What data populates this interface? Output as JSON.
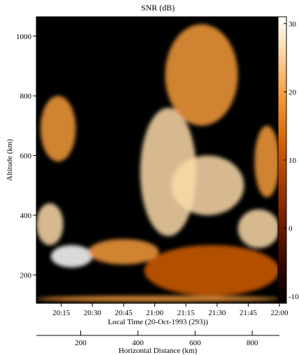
{
  "chart_data": {
    "type": "heatmap",
    "title": "SNR (dB)",
    "xlabel": "Local Time (20-Oct-1993 (293))",
    "ylabel": "Altitude (km)",
    "x2label": "Horizontal Distance (km)",
    "x_ticks": [
      "20:15",
      "20:30",
      "20:45",
      "21:00",
      "21:15",
      "21:30",
      "21:45",
      "22:00"
    ],
    "x_tick_minutes": [
      1215,
      1230,
      1245,
      1260,
      1275,
      1290,
      1305,
      1320
    ],
    "xlim_minutes": [
      1203,
      1320
    ],
    "y_ticks": [
      200,
      400,
      600,
      800,
      1000
    ],
    "ylim": [
      105,
      1065
    ],
    "x2_ticks": [
      200,
      400,
      600,
      800
    ],
    "x2lim": [
      45,
      895
    ],
    "colorbar": {
      "range": [
        -11,
        31
      ],
      "ticks": [
        -10,
        0,
        10,
        20,
        30
      ],
      "colors": [
        "#000000",
        "#3a0800",
        "#8c2a00",
        "#d25d00",
        "#f59a3a",
        "#fcd9a8",
        "#ffffff"
      ]
    },
    "grid": false,
    "background_value": -10,
    "echo_regions": [
      {
        "time": [
          1203,
          1216
        ],
        "alt": [
          300,
          440
        ],
        "snr": 22
      },
      {
        "time": [
          1210,
          1230
        ],
        "alt": [
          225,
          300
        ],
        "snr": 24
      },
      {
        "time": [
          1205,
          1222
        ],
        "alt": [
          580,
          800
        ],
        "snr": 12
      },
      {
        "time": [
          1228,
          1262
        ],
        "alt": [
          235,
          320
        ],
        "snr": 14
      },
      {
        "time": [
          1253,
          1280
        ],
        "alt": [
          330,
          760
        ],
        "snr": 20
      },
      {
        "time": [
          1265,
          1300
        ],
        "alt": [
          700,
          1040
        ],
        "snr": 16
      },
      {
        "time": [
          1268,
          1303
        ],
        "alt": [
          400,
          600
        ],
        "snr": 18
      },
      {
        "time": [
          1300,
          1320
        ],
        "alt": [
          290,
          420
        ],
        "snr": 22
      },
      {
        "time": [
          1308,
          1320
        ],
        "alt": [
          460,
          700
        ],
        "snr": 10
      },
      {
        "time": [
          1255,
          1320
        ],
        "alt": [
          130,
          300
        ],
        "snr": 6
      },
      {
        "time": [
          1203,
          1320
        ],
        "alt": [
          110,
          130
        ],
        "snr": 15
      }
    ]
  }
}
